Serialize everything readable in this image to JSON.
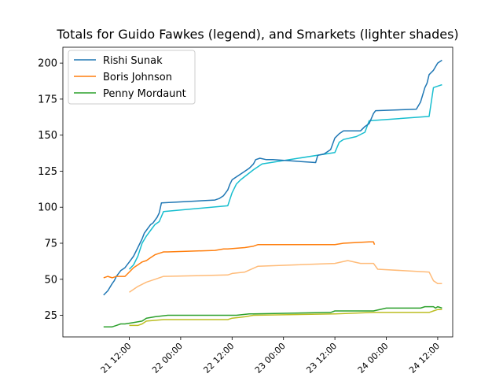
{
  "chart_data": {
    "type": "line",
    "title": "Totals for Guido Fawkes (legend), and Smarkets (lighter shades)",
    "xlabel": "",
    "ylabel": "",
    "x_axis_type": "datetime",
    "x_ticks": [
      "21 12:00",
      "22 00:00",
      "22 12:00",
      "23 00:00",
      "23 12:00",
      "24 00:00",
      "24 12:00"
    ],
    "x_tick_values": [
      "2022-10-21T12:00",
      "2022-10-22T00:00",
      "2022-10-22T12:00",
      "2022-10-23T00:00",
      "2022-10-23T12:00",
      "2022-10-24T00:00",
      "2022-10-24T12:00"
    ],
    "xlim": [
      "2022-10-20T20:30",
      "2022-10-24T15:30"
    ],
    "y_ticks": [
      25,
      50,
      75,
      100,
      125,
      150,
      175,
      200
    ],
    "ylim": [
      10,
      211
    ],
    "grid": false,
    "legend_position": "top-left",
    "series": [
      {
        "name": "Rishi Sunak",
        "source": "Guido Fawkes",
        "color": "#1f77b4",
        "x": [
          "2022-10-21T06:00",
          "2022-10-21T07:00",
          "2022-10-21T08:00",
          "2022-10-21T08:30",
          "2022-10-21T09:00",
          "2022-10-21T10:00",
          "2022-10-21T11:00",
          "2022-10-21T12:00",
          "2022-10-21T13:00",
          "2022-10-21T14:00",
          "2022-10-21T15:00",
          "2022-10-21T15:30",
          "2022-10-21T16:00",
          "2022-10-21T17:00",
          "2022-10-21T17:30",
          "2022-10-21T18:30",
          "2022-10-21T19:00",
          "2022-10-21T19:30",
          "2022-10-22T08:00",
          "2022-10-22T09:00",
          "2022-10-22T10:00",
          "2022-10-22T11:00",
          "2022-10-22T11:30",
          "2022-10-22T12:00",
          "2022-10-22T13:00",
          "2022-10-22T14:00",
          "2022-10-22T15:00",
          "2022-10-22T16:00",
          "2022-10-22T17:00",
          "2022-10-22T17:30",
          "2022-10-22T18:30",
          "2022-10-22T20:00",
          "2022-10-22T21:30",
          "2022-10-23T07:30",
          "2022-10-23T08:00",
          "2022-10-23T09:30",
          "2022-10-23T11:00",
          "2022-10-23T12:00",
          "2022-10-23T13:00",
          "2022-10-23T14:00",
          "2022-10-23T18:00",
          "2022-10-23T19:00",
          "2022-10-23T20:00",
          "2022-10-23T21:00",
          "2022-10-23T21:30",
          "2022-10-24T07:00",
          "2022-10-24T08:00",
          "2022-10-24T09:00",
          "2022-10-24T09:30",
          "2022-10-24T10:00",
          "2022-10-24T11:00",
          "2022-10-24T12:00",
          "2022-10-24T13:00"
        ],
        "y": [
          39,
          42,
          47,
          49,
          52,
          56,
          58,
          62,
          66,
          72,
          78,
          82,
          84,
          88,
          89,
          93,
          96,
          103,
          105,
          106,
          108,
          112,
          116,
          119,
          121,
          123,
          125,
          127,
          130,
          133,
          134,
          133,
          133,
          131,
          136,
          137,
          140,
          148,
          151,
          153,
          153,
          156,
          158,
          165,
          167,
          168,
          173,
          183,
          186,
          192,
          195,
          200,
          202
        ]
      },
      {
        "name": "Boris Johnson",
        "source": "Guido Fawkes",
        "color": "#ff7f0e",
        "x": [
          "2022-10-21T06:00",
          "2022-10-21T07:00",
          "2022-10-21T08:00",
          "2022-10-21T09:00",
          "2022-10-21T11:00",
          "2022-10-21T12:00",
          "2022-10-21T13:00",
          "2022-10-21T14:00",
          "2022-10-21T15:00",
          "2022-10-21T16:00",
          "2022-10-21T17:00",
          "2022-10-21T18:00",
          "2022-10-21T19:00",
          "2022-10-21T20:00",
          "2022-10-21T21:00",
          "2022-10-22T08:00",
          "2022-10-22T10:00",
          "2022-10-22T11:00",
          "2022-10-22T15:00",
          "2022-10-22T17:00",
          "2022-10-22T18:00",
          "2022-10-23T12:00",
          "2022-10-23T14:00",
          "2022-10-23T20:00",
          "2022-10-23T21:00",
          "2022-10-23T21:15"
        ],
        "y": [
          51,
          52,
          51,
          52,
          52,
          55,
          58,
          60,
          62,
          63,
          65,
          67,
          68,
          69,
          69,
          70,
          71,
          71,
          72,
          73,
          74,
          74,
          75,
          76,
          76,
          74
        ]
      },
      {
        "name": "Penny Mordaunt",
        "source": "Guido Fawkes",
        "color": "#2ca02c",
        "x": [
          "2022-10-21T06:00",
          "2022-10-21T08:00",
          "2022-10-21T09:00",
          "2022-10-21T10:00",
          "2022-10-21T11:00",
          "2022-10-21T13:00",
          "2022-10-21T15:00",
          "2022-10-21T16:00",
          "2022-10-21T18:00",
          "2022-10-21T21:00",
          "2022-10-22T13:00",
          "2022-10-22T16:00",
          "2022-10-22T17:00",
          "2022-10-23T11:00",
          "2022-10-23T12:00",
          "2022-10-23T21:00",
          "2022-10-24T00:00",
          "2022-10-24T08:00",
          "2022-10-24T09:00",
          "2022-10-24T11:00",
          "2022-10-24T11:30",
          "2022-10-24T12:00",
          "2022-10-24T13:00"
        ],
        "y": [
          17,
          17,
          18,
          19,
          19,
          20,
          21,
          23,
          24,
          25,
          25,
          26,
          26,
          27,
          28,
          28,
          30,
          30,
          31,
          31,
          30,
          31,
          30
        ]
      },
      {
        "name": "",
        "source": "Smarkets",
        "color": "#17becf",
        "x": [
          "2022-10-21T12:00",
          "2022-10-21T13:00",
          "2022-10-21T14:00",
          "2022-10-21T15:00",
          "2022-10-21T16:00",
          "2022-10-21T17:00",
          "2022-10-21T18:00",
          "2022-10-21T19:00",
          "2022-10-21T20:00",
          "2022-10-22T11:00",
          "2022-10-22T12:00",
          "2022-10-22T13:00",
          "2022-10-22T14:00",
          "2022-10-22T17:00",
          "2022-10-22T19:00",
          "2022-10-23T12:00",
          "2022-10-23T13:00",
          "2022-10-23T14:00",
          "2022-10-23T17:00",
          "2022-10-23T19:00",
          "2022-10-23T20:00",
          "2022-10-24T10:00",
          "2022-10-24T11:00",
          "2022-10-24T12:00",
          "2022-10-24T13:00"
        ],
        "y": [
          57,
          60,
          66,
          75,
          80,
          84,
          88,
          90,
          97,
          101,
          110,
          116,
          119,
          126,
          130,
          138,
          145,
          147,
          149,
          152,
          160,
          163,
          183,
          184,
          185
        ]
      },
      {
        "name": "",
        "source": "Smarkets",
        "color": "#ffbb78",
        "x": [
          "2022-10-21T12:00",
          "2022-10-21T14:00",
          "2022-10-21T16:00",
          "2022-10-21T18:00",
          "2022-10-21T20:00",
          "2022-10-22T11:00",
          "2022-10-22T12:00",
          "2022-10-22T15:00",
          "2022-10-22T18:00",
          "2022-10-23T12:00",
          "2022-10-23T15:00",
          "2022-10-23T18:00",
          "2022-10-23T21:00",
          "2022-10-23T22:00",
          "2022-10-24T10:00",
          "2022-10-24T11:00",
          "2022-10-24T12:00",
          "2022-10-24T13:00"
        ],
        "y": [
          41,
          45,
          48,
          50,
          52,
          53,
          54,
          55,
          59,
          61,
          63,
          61,
          61,
          57,
          55,
          49,
          47,
          47
        ]
      },
      {
        "name": "",
        "source": "Smarkets",
        "color": "#bcbd22",
        "x": [
          "2022-10-21T12:00",
          "2022-10-21T14:00",
          "2022-10-21T15:00",
          "2022-10-21T16:00",
          "2022-10-21T20:00",
          "2022-10-22T11:00",
          "2022-10-22T12:00",
          "2022-10-22T15:00",
          "2022-10-22T17:00",
          "2022-10-23T12:00",
          "2022-10-23T21:00",
          "2022-10-24T10:00",
          "2022-10-24T11:00",
          "2022-10-24T12:00",
          "2022-10-24T13:00"
        ],
        "y": [
          18,
          18,
          19,
          21,
          22,
          22,
          23,
          24,
          25,
          26,
          27,
          27,
          28,
          29,
          29
        ]
      }
    ]
  }
}
